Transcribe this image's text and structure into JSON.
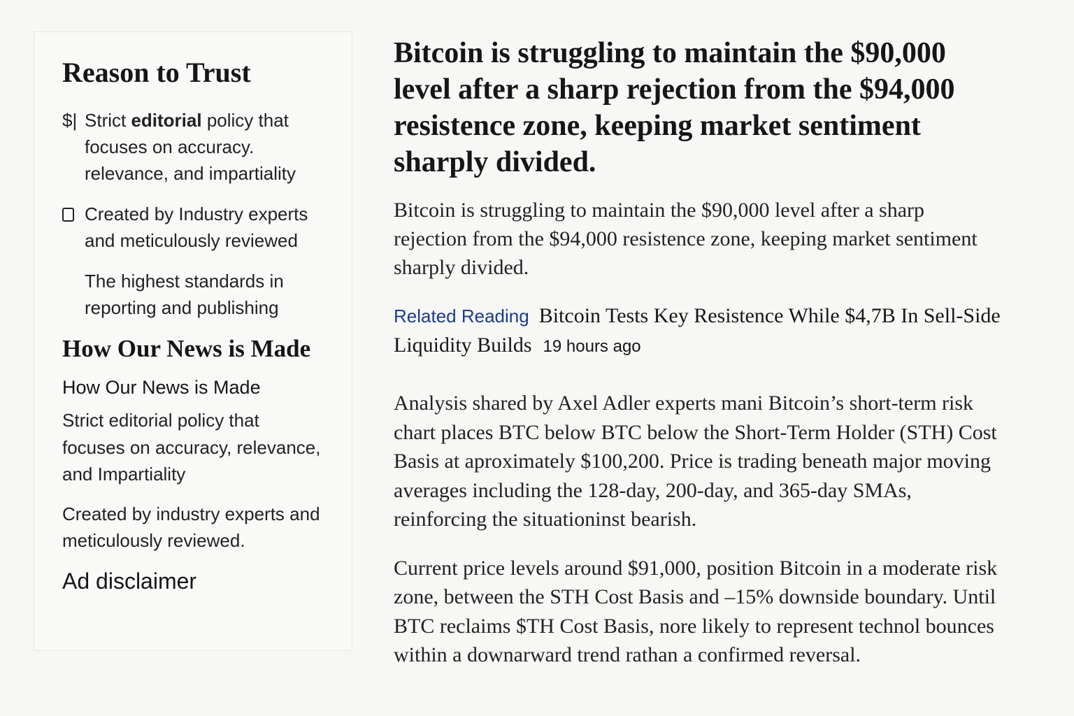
{
  "sidebar": {
    "title": "Reason to Trust",
    "items": [
      {
        "icon": "$|",
        "parts": [
          "Strict ",
          "editorial",
          " policy that focuses on accuracy. relevance, and impartiality"
        ]
      },
      {
        "text": "Created by Industry experts and meticulously reviewed"
      },
      {
        "text": "The highest standards in reporting and publishing"
      }
    ],
    "section_title": "How Our News is Made",
    "section_subtitle": "How Our News is Made",
    "section_paragraphs": [
      "Strict editorial policy that focuses on accuracy, relevance, and Impartiality",
      "Created by industry experts and meticulously reviewed."
    ],
    "ad_disclaimer": "Ad disclaimer"
  },
  "article": {
    "headline": "Bitcoin is struggling to maintain the $90,000 level after a sharp rejection from the $94,000 resistence zone, keeping market sentiment sharply divided.",
    "lead": "Bitcoin is struggling to maintain the $90,000 level after a sharp rejection from the $94,000 resistence zone, keeping market sentiment sharply divided.",
    "related": {
      "label": "Related Reading",
      "title": "Bitcoin Tests Key Resistence While $4,7B In Sell-Side Liquidity Builds",
      "time": "19 hours ago"
    },
    "paragraphs": [
      "Analysis shared by Axel Adler experts mani Bitcoin’s short-term risk chart places BTC below BTC below the Short-Term Holder (STH) Cost Basis at aproximately $100,200. Price is trading beneath major moving averages including the 128-day, 200-day, and 365-day SMAs, reinforcing the situationinst bearish.",
      "Current price levels around $91,000, position Bitcoin in a moderate risk zone, between the STH Cost Basis and –15% downside boundary. Until BTC reclaims $TH Cost Basis, nore likely to represent technol bounces within a downarward trend rathan a confirmed reversal."
    ]
  }
}
